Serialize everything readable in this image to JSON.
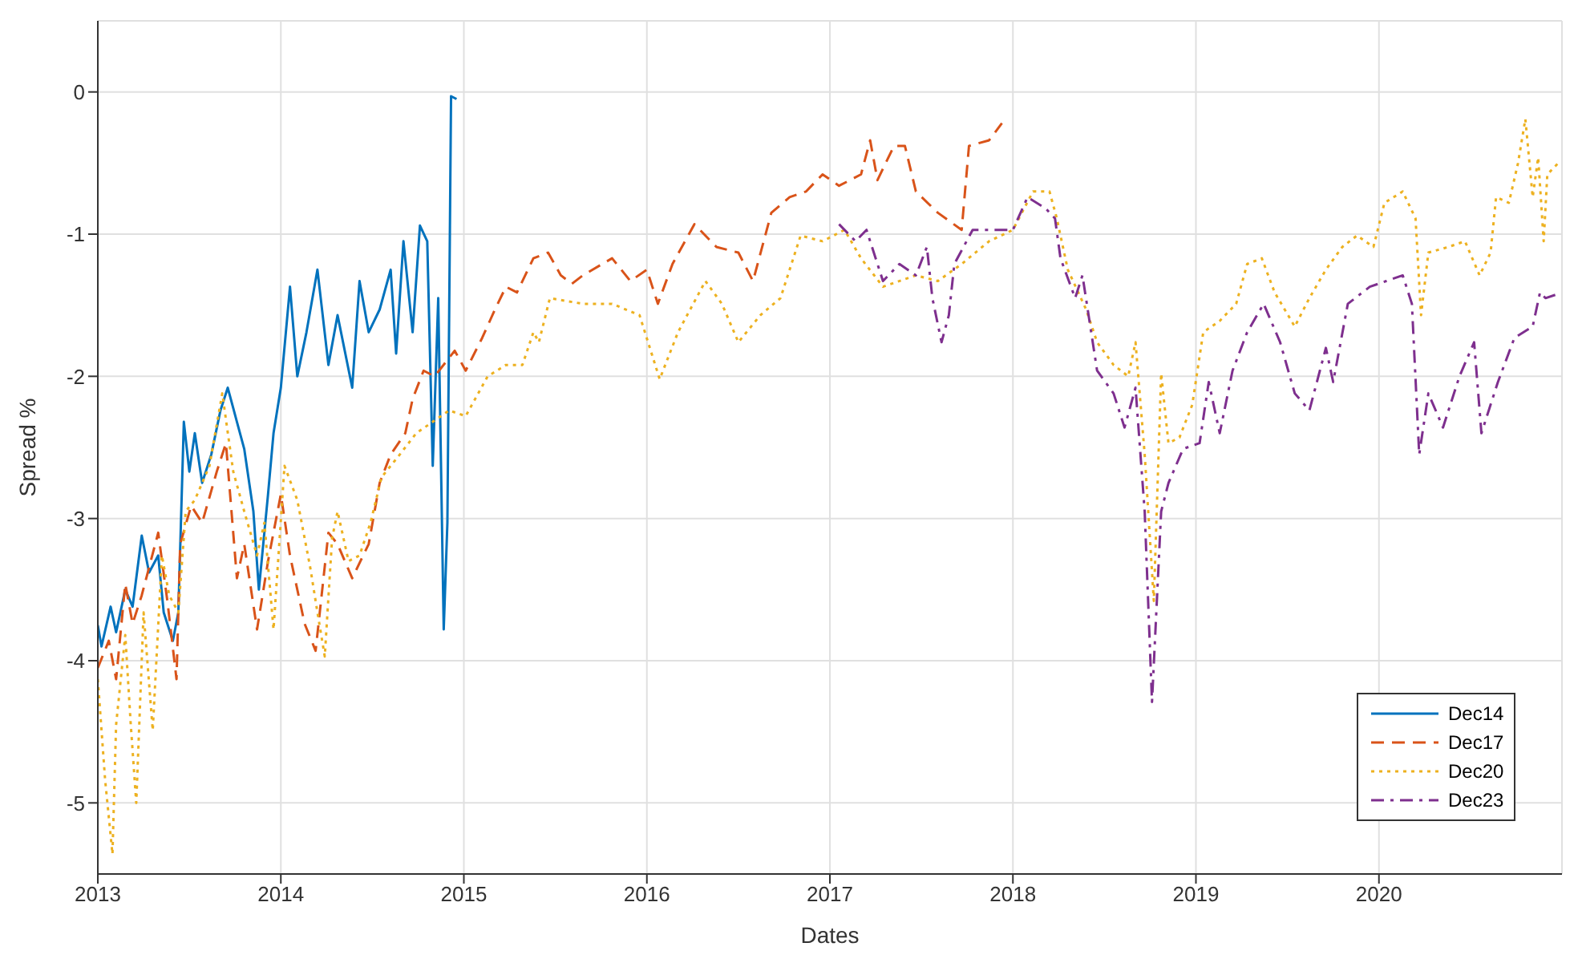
{
  "chart_data": {
    "type": "line",
    "xlabel": "Dates",
    "ylabel": "Spread %",
    "xlim": [
      2013,
      2021
    ],
    "xticks": [
      2013,
      2014,
      2015,
      2016,
      2017,
      2018,
      2019,
      2020
    ],
    "ylim": [
      -5.5,
      0.5
    ],
    "yticks": [
      -5,
      -4,
      -3,
      -2,
      -1,
      0
    ],
    "grid": true,
    "legend": "bottom right",
    "marker": "none",
    "series": [
      {
        "name": "Dec14",
        "color": "#0072bd",
        "line_style": "solid",
        "x": [
          2013.0,
          2013.02,
          2013.07,
          2013.1,
          2013.15,
          2013.19,
          2013.24,
          2013.28,
          2013.33,
          2013.36,
          2013.41,
          2013.44,
          2013.47,
          2013.5,
          2013.53,
          2013.57,
          2013.62,
          2013.67,
          2013.71,
          2013.76,
          2013.8,
          2013.85,
          2013.88,
          2013.93,
          2013.96,
          2014.0,
          2014.05,
          2014.09,
          2014.14,
          2014.2,
          2014.26,
          2014.31,
          2014.39,
          2014.43,
          2014.48,
          2014.54,
          2014.6,
          2014.63,
          2014.67,
          2014.72,
          2014.76,
          2014.8,
          2014.83,
          2014.86,
          2014.89,
          2014.91,
          2014.93,
          2014.96
        ],
        "values": [
          -3.75,
          -3.9,
          -3.62,
          -3.8,
          -3.5,
          -3.62,
          -3.12,
          -3.38,
          -3.26,
          -3.66,
          -3.86,
          -3.66,
          -2.32,
          -2.67,
          -2.4,
          -2.75,
          -2.55,
          -2.24,
          -2.08,
          -2.32,
          -2.51,
          -2.95,
          -3.5,
          -2.83,
          -2.4,
          -2.08,
          -1.37,
          -2.0,
          -1.69,
          -1.25,
          -1.92,
          -1.57,
          -2.08,
          -1.33,
          -1.69,
          -1.53,
          -1.25,
          -1.84,
          -1.05,
          -1.69,
          -0.94,
          -1.05,
          -2.63,
          -1.45,
          -3.78,
          -3.03,
          -0.03,
          -0.05
        ]
      },
      {
        "name": "Dec17",
        "color": "#d95319",
        "line_style": "dashed",
        "x": [
          2013.0,
          2013.06,
          2013.1,
          2013.15,
          2013.19,
          2013.24,
          2013.33,
          2013.38,
          2013.43,
          2013.45,
          2013.51,
          2013.57,
          2013.65,
          2013.7,
          2013.76,
          2013.8,
          2013.87,
          2013.93,
          2014.0,
          2014.05,
          2014.13,
          2014.19,
          2014.26,
          2014.31,
          2014.39,
          2014.48,
          2014.54,
          2014.6,
          2014.68,
          2014.72,
          2014.78,
          2014.84,
          2014.95,
          2015.01,
          2015.1,
          2015.17,
          2015.23,
          2015.29,
          2015.38,
          2015.46,
          2015.53,
          2015.59,
          2015.65,
          2015.81,
          2015.91,
          2016.0,
          2016.06,
          2016.14,
          2016.26,
          2016.38,
          2016.5,
          2016.58,
          2016.68,
          2016.78,
          2016.87,
          2016.96,
          2017.05,
          2017.17,
          2017.22,
          2017.26,
          2017.35,
          2017.41,
          2017.47,
          2017.59,
          2017.72,
          2017.76,
          2017.87,
          2017.94
        ],
        "values": [
          -4.05,
          -3.86,
          -4.13,
          -3.46,
          -3.74,
          -3.54,
          -3.1,
          -3.58,
          -4.13,
          -3.18,
          -2.91,
          -3.03,
          -2.67,
          -2.47,
          -3.42,
          -3.18,
          -3.78,
          -3.3,
          -2.83,
          -3.26,
          -3.74,
          -3.93,
          -3.1,
          -3.18,
          -3.42,
          -3.18,
          -2.75,
          -2.55,
          -2.4,
          -2.16,
          -1.96,
          -2.0,
          -1.82,
          -1.96,
          -1.73,
          -1.53,
          -1.37,
          -1.41,
          -1.17,
          -1.13,
          -1.29,
          -1.35,
          -1.29,
          -1.17,
          -1.33,
          -1.25,
          -1.49,
          -1.21,
          -0.93,
          -1.09,
          -1.13,
          -1.33,
          -0.85,
          -0.74,
          -0.7,
          -0.58,
          -0.66,
          -0.58,
          -0.34,
          -0.62,
          -0.38,
          -0.38,
          -0.7,
          -0.85,
          -0.97,
          -0.38,
          -0.34,
          -0.22
        ]
      },
      {
        "name": "Dec20",
        "color": "#edb120",
        "line_style": "dotted",
        "x": [
          2013.0,
          2013.04,
          2013.08,
          2013.1,
          2013.15,
          2013.18,
          2013.21,
          2013.25,
          2013.3,
          2013.35,
          2013.39,
          2013.44,
          2013.48,
          2013.53,
          2013.61,
          2013.68,
          2013.74,
          2013.8,
          2013.87,
          2013.91,
          2013.96,
          2014.02,
          2014.09,
          2014.16,
          2014.2,
          2014.24,
          2014.28,
          2014.31,
          2014.37,
          2014.43,
          2014.49,
          2014.55,
          2014.65,
          2014.74,
          2014.83,
          2014.92,
          2015.01,
          2015.13,
          2015.23,
          2015.32,
          2015.38,
          2015.41,
          2015.47,
          2015.65,
          2015.81,
          2015.96,
          2016.07,
          2016.17,
          2016.32,
          2016.41,
          2016.5,
          2016.62,
          2016.73,
          2016.84,
          2016.96,
          2017.08,
          2017.17,
          2017.29,
          2017.47,
          2017.59,
          2017.72,
          2017.87,
          2018.0,
          2018.11,
          2018.2,
          2018.24,
          2018.3,
          2018.4,
          2018.46,
          2018.55,
          2018.63,
          2018.67,
          2018.72,
          2018.77,
          2018.81,
          2018.85,
          2018.91,
          2018.98,
          2019.04,
          2019.13,
          2019.22,
          2019.28,
          2019.36,
          2019.43,
          2019.54,
          2019.62,
          2019.71,
          2019.8,
          2019.88,
          2019.97,
          2020.03,
          2020.13,
          2020.2,
          2020.23,
          2020.27,
          2020.38,
          2020.47,
          2020.55,
          2020.61,
          2020.64,
          2020.71,
          2020.76,
          2020.8,
          2020.84,
          2020.87,
          2020.9,
          2020.92,
          2020.98
        ],
        "values": [
          -4.13,
          -4.84,
          -5.36,
          -4.45,
          -3.82,
          -4.45,
          -5.0,
          -3.66,
          -4.49,
          -3.26,
          -3.54,
          -3.66,
          -2.95,
          -2.87,
          -2.63,
          -2.12,
          -2.67,
          -2.95,
          -3.26,
          -3.03,
          -3.78,
          -2.63,
          -2.87,
          -3.34,
          -3.66,
          -3.97,
          -3.14,
          -2.95,
          -3.3,
          -3.26,
          -3.03,
          -2.71,
          -2.55,
          -2.4,
          -2.32,
          -2.24,
          -2.28,
          -2.0,
          -1.92,
          -1.92,
          -1.69,
          -1.76,
          -1.45,
          -1.49,
          -1.49,
          -1.57,
          -2.02,
          -1.69,
          -1.33,
          -1.49,
          -1.76,
          -1.57,
          -1.45,
          -1.01,
          -1.05,
          -0.97,
          -1.17,
          -1.37,
          -1.29,
          -1.33,
          -1.21,
          -1.05,
          -0.97,
          -0.7,
          -0.7,
          -0.89,
          -1.25,
          -1.53,
          -1.76,
          -1.92,
          -2.0,
          -1.76,
          -2.55,
          -3.58,
          -1.98,
          -2.47,
          -2.43,
          -2.2,
          -1.69,
          -1.61,
          -1.49,
          -1.21,
          -1.17,
          -1.41,
          -1.65,
          -1.45,
          -1.25,
          -1.09,
          -1.01,
          -1.09,
          -0.78,
          -0.7,
          -0.89,
          -1.57,
          -1.13,
          -1.09,
          -1.05,
          -1.29,
          -1.13,
          -0.74,
          -0.78,
          -0.5,
          -0.19,
          -0.74,
          -0.46,
          -1.05,
          -0.58,
          -0.5
        ]
      },
      {
        "name": "Dec23",
        "color": "#7e2f8e",
        "line_style": "dashdot",
        "x": [
          2017.05,
          2017.14,
          2017.2,
          2017.29,
          2017.38,
          2017.47,
          2017.53,
          2017.56,
          2017.61,
          2017.65,
          2017.68,
          2017.78,
          2017.9,
          2018.0,
          2018.08,
          2018.18,
          2018.23,
          2018.26,
          2018.34,
          2018.38,
          2018.46,
          2018.55,
          2018.61,
          2018.67,
          2018.72,
          2018.76,
          2018.81,
          2018.85,
          2018.93,
          2019.02,
          2019.07,
          2019.13,
          2019.2,
          2019.28,
          2019.37,
          2019.46,
          2019.54,
          2019.62,
          2019.71,
          2019.75,
          2019.83,
          2019.95,
          2020.04,
          2020.13,
          2020.18,
          2020.22,
          2020.27,
          2020.35,
          2020.44,
          2020.52,
          2020.56,
          2020.65,
          2020.74,
          2020.84,
          2020.88,
          2020.91,
          2020.98
        ],
        "values": [
          -0.93,
          -1.05,
          -0.97,
          -1.33,
          -1.21,
          -1.29,
          -1.09,
          -1.45,
          -1.76,
          -1.57,
          -1.21,
          -0.97,
          -0.97,
          -0.97,
          -0.74,
          -0.82,
          -0.89,
          -1.17,
          -1.45,
          -1.29,
          -1.96,
          -2.12,
          -2.36,
          -2.08,
          -2.95,
          -4.29,
          -2.95,
          -2.75,
          -2.51,
          -2.47,
          -2.04,
          -2.4,
          -1.96,
          -1.69,
          -1.49,
          -1.76,
          -2.12,
          -2.24,
          -1.8,
          -2.04,
          -1.49,
          -1.37,
          -1.33,
          -1.29,
          -1.49,
          -2.55,
          -2.12,
          -2.36,
          -2.0,
          -1.76,
          -2.4,
          -2.04,
          -1.73,
          -1.65,
          -1.41,
          -1.45,
          -1.42
        ]
      }
    ]
  }
}
